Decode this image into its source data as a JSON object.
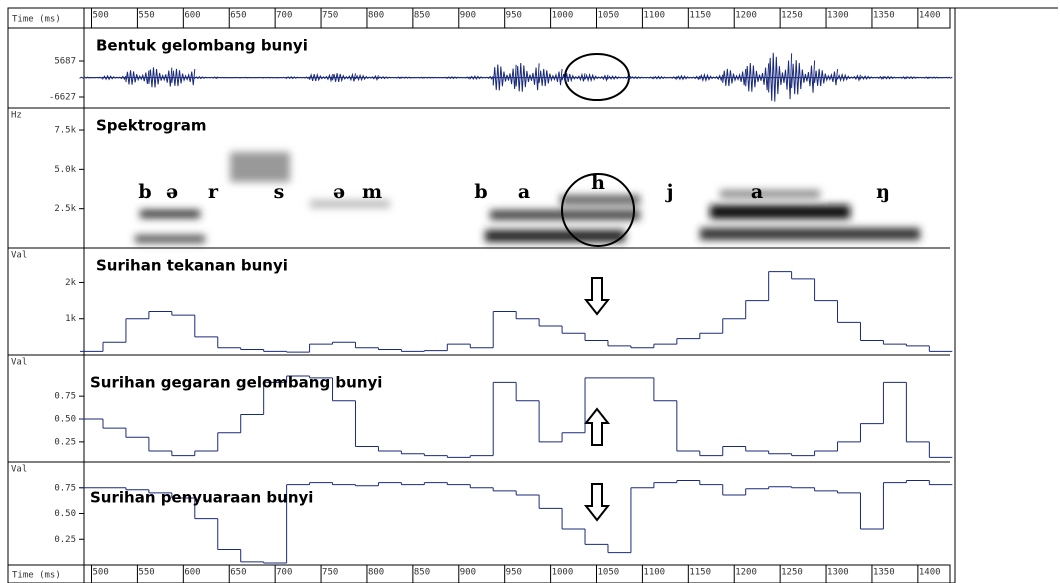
{
  "time_axis": {
    "label": "Time (ms)",
    "ticks": [
      500,
      550,
      600,
      650,
      700,
      750,
      800,
      850,
      900,
      950,
      1000,
      1050,
      1100,
      1150,
      1200,
      1250,
      1300,
      1350,
      1400
    ],
    "xlim": [
      494,
      1435
    ]
  },
  "time_points": [
    500,
    525,
    550,
    575,
    600,
    625,
    650,
    675,
    700,
    725,
    750,
    775,
    800,
    825,
    850,
    875,
    900,
    925,
    950,
    975,
    1000,
    1025,
    1050,
    1075,
    1100,
    1125,
    1150,
    1175,
    1200,
    1225,
    1250,
    1275,
    1300,
    1325,
    1350,
    1375,
    1400,
    1425
  ],
  "waveform": {
    "title": "Bentuk gelombang bunyi",
    "ylim": [
      -6627,
      5687
    ],
    "yticks": [
      5687,
      -6627
    ],
    "values": [
      200,
      600,
      2500,
      3500,
      3000,
      300,
      100,
      100,
      100,
      300,
      1200,
      1500,
      800,
      300,
      200,
      150,
      300,
      500,
      4500,
      5000,
      3000,
      1500,
      1000,
      500,
      300,
      400,
      600,
      1000,
      3000,
      5000,
      8500,
      6000,
      3000,
      1000,
      500,
      400,
      300,
      200
    ]
  },
  "spectrogram": {
    "title": "Spektrogram",
    "unit": "Hz",
    "ylim": [
      0,
      8900
    ],
    "yticks": [
      {
        "value": 2500,
        "label": "2.5k"
      },
      {
        "value": 5000,
        "label": "5.0k"
      },
      {
        "value": 7500,
        "label": "7.5k"
      }
    ],
    "phonemes": [
      "b",
      "ə",
      "r",
      "s",
      "ə",
      "m",
      "b",
      "a",
      "h",
      "j",
      "a",
      "ŋ"
    ]
  },
  "pressure": {
    "title": "Surihan tekanan bunyi",
    "unit": "Val",
    "ylim": [
      0,
      2950
    ],
    "yticks": [
      {
        "value": 1000,
        "label": "1k"
      },
      {
        "value": 2000,
        "label": "2k"
      }
    ],
    "values": [
      100,
      350,
      1000,
      1200,
      1100,
      500,
      200,
      150,
      100,
      80,
      300,
      350,
      200,
      150,
      100,
      120,
      300,
      200,
      1200,
      1000,
      800,
      600,
      400,
      250,
      200,
      300,
      450,
      600,
      1000,
      1500,
      2300,
      2100,
      1500,
      900,
      400,
      300,
      250,
      100
    ]
  },
  "vibration": {
    "title": "Surihan gegaran gelombang bunyi",
    "unit": "Val",
    "ylim": [
      0.03,
      1.2
    ],
    "yticks": [
      0.25,
      0.5,
      0.75
    ],
    "ytick_labels": [
      "0.25",
      "0.50",
      "0.75"
    ],
    "values": [
      0.5,
      0.4,
      0.3,
      0.15,
      0.1,
      0.15,
      0.35,
      0.55,
      0.9,
      0.97,
      0.95,
      0.7,
      0.2,
      0.15,
      0.12,
      0.1,
      0.08,
      0.1,
      0.9,
      0.7,
      0.25,
      0.35,
      0.95,
      0.95,
      0.95,
      0.7,
      0.15,
      0.1,
      0.2,
      0.15,
      0.12,
      0.1,
      0.15,
      0.25,
      0.45,
      0.9,
      0.25,
      0.08
    ]
  },
  "voicing": {
    "title": "Surihan penyuaraan bunyi",
    "unit": "Val",
    "ylim": [
      0,
      1
    ],
    "yticks": [
      0.25,
      0.5,
      0.75
    ],
    "ytick_labels": [
      "0.25",
      "0.50",
      "0.75"
    ],
    "values": [
      0.75,
      0.75,
      0.73,
      0.7,
      0.65,
      0.45,
      0.15,
      0.03,
      0.02,
      0.78,
      0.8,
      0.78,
      0.77,
      0.8,
      0.78,
      0.8,
      0.78,
      0.75,
      0.72,
      0.68,
      0.55,
      0.35,
      0.2,
      0.12,
      0.75,
      0.8,
      0.82,
      0.78,
      0.68,
      0.74,
      0.76,
      0.75,
      0.72,
      0.7,
      0.35,
      0.8,
      0.82,
      0.78
    ]
  }
}
